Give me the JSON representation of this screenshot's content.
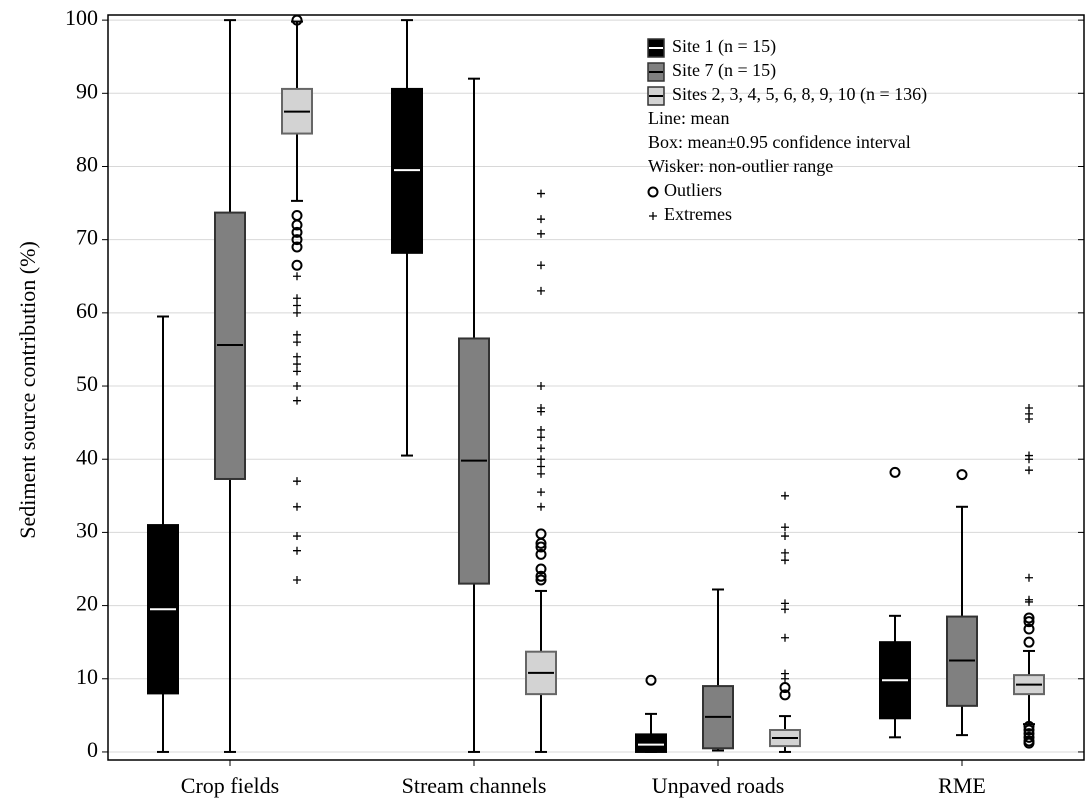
{
  "chart_data": {
    "type": "box",
    "y_label": "Sediment source contribution (%)",
    "categories": [
      "Crop fields",
      "Stream channels",
      "Unpaved roads",
      "RME"
    ],
    "ylim": [
      -1.1,
      100.7
    ],
    "yticks": [
      0,
      10,
      20,
      30,
      40,
      50,
      60,
      70,
      80,
      90,
      100
    ],
    "grid": true,
    "legend_position": "upper right",
    "series": [
      {
        "name": "Site 1 (n = 15)",
        "color": "#000000",
        "mean_color": "#ffffff",
        "boxes": [
          {
            "whisker_low": 0,
            "box_low": 8,
            "mean": 19.5,
            "box_high": 31,
            "whisker_high": 59.5,
            "outliers": [],
            "extremes": []
          },
          {
            "whisker_low": 40.5,
            "box_low": 68.2,
            "mean": 79.5,
            "box_high": 90.6,
            "whisker_high": 100,
            "outliers": [],
            "extremes": []
          },
          {
            "whisker_low": 0,
            "box_low": 0,
            "mean": 1,
            "box_high": 2.4,
            "whisker_high": 5.2,
            "outliers": [
              9.8
            ],
            "extremes": []
          },
          {
            "whisker_low": 2,
            "box_low": 4.6,
            "mean": 9.8,
            "box_high": 15,
            "whisker_high": 18.6,
            "outliers": [
              38.2
            ],
            "extremes": []
          }
        ]
      },
      {
        "name": "Site 7 (n = 15)",
        "color": "#808080",
        "mean_color": "#000000",
        "boxes": [
          {
            "whisker_low": 0,
            "box_low": 37.3,
            "mean": 55.6,
            "box_high": 73.7,
            "whisker_high": 100,
            "outliers": [],
            "extremes": []
          },
          {
            "whisker_low": 0,
            "box_low": 23,
            "mean": 39.8,
            "box_high": 56.5,
            "whisker_high": 92,
            "outliers": [],
            "extremes": []
          },
          {
            "whisker_low": 0.2,
            "box_low": 0.5,
            "mean": 4.8,
            "box_high": 9,
            "whisker_high": 22.2,
            "outliers": [],
            "extremes": []
          },
          {
            "whisker_low": 2.3,
            "box_low": 6.3,
            "mean": 12.5,
            "box_high": 18.5,
            "whisker_high": 33.5,
            "outliers": [
              37.9
            ],
            "extremes": []
          }
        ]
      },
      {
        "name": "Sites 2, 3, 4, 5, 6, 8, 9, 10  (n = 136)",
        "color": "#d3d3d3",
        "mean_color": "#000000",
        "boxes": [
          {
            "whisker_low": 75.3,
            "box_low": 84.5,
            "mean": 87.5,
            "box_high": 90.6,
            "whisker_high": 99.8,
            "outliers": [
              100,
              73.3,
              72,
              71,
              70,
              69,
              66.5
            ],
            "extremes": [
              65,
              62,
              61,
              60,
              57,
              56,
              54,
              53,
              52,
              50,
              48,
              37,
              33.5,
              29.5,
              27.5,
              23.5
            ]
          },
          {
            "whisker_low": 0,
            "box_low": 7.9,
            "mean": 10.8,
            "box_high": 13.7,
            "whisker_high": 22,
            "outliers": [
              29.8,
              28.5,
              28,
              27,
              25,
              24,
              23.5
            ],
            "extremes": [
              76.3,
              72.8,
              70.8,
              66.5,
              63,
              50,
              47,
              46.5,
              44,
              43,
              41.5,
              40,
              39,
              38,
              35.5,
              33.5
            ]
          },
          {
            "whisker_low": 0,
            "box_low": 0.8,
            "mean": 1.9,
            "box_high": 3,
            "whisker_high": 4.9,
            "outliers": [
              8.8,
              7.8
            ],
            "extremes": [
              35,
              30.7,
              29.5,
              27.2,
              26.2,
              20.3,
              19.5,
              15.6,
              10.7,
              10
            ]
          },
          {
            "whisker_low": 3.8,
            "box_low": 7.9,
            "mean": 9.2,
            "box_high": 10.5,
            "whisker_high": 13.8,
            "outliers": [
              18.3,
              17.8,
              16.8,
              15,
              3.5,
              3,
              2.5,
              2,
              1.5,
              1.2
            ],
            "extremes": [
              47,
              46.2,
              45.5,
              40.5,
              40,
              38.5,
              23.8,
              20.8,
              20.5
            ]
          }
        ]
      }
    ],
    "legend_notes": {
      "line": "Line: mean",
      "box": "Box: mean±0.95 confidence interval",
      "whisker": "Wisker: non-outlier range",
      "outliers": "Outliers",
      "extremes": "Extremes"
    }
  }
}
